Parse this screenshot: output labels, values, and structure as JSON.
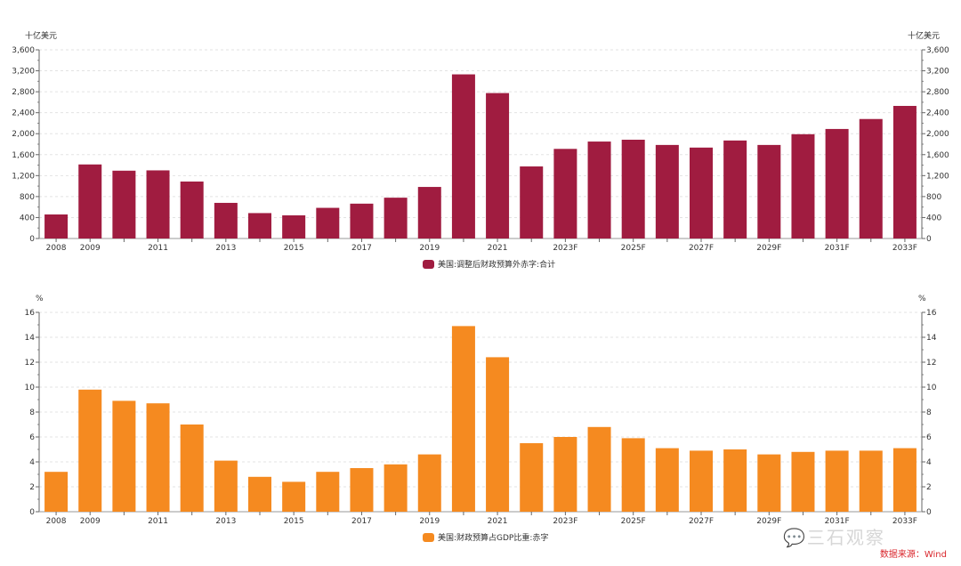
{
  "chart_data": [
    {
      "type": "bar",
      "unit_label": "十亿美元",
      "legend": "美国:调整后财政预算外赤字:合计",
      "legend_placement": "bottom",
      "color": "#a01c40",
      "ylim": [
        0,
        3600
      ],
      "yticks": [
        0,
        400,
        800,
        1200,
        1600,
        2000,
        2400,
        2800,
        3200,
        3600
      ],
      "ytick_labels": [
        "0",
        "400",
        "800",
        "1,200",
        "1,600",
        "2,000",
        "2,400",
        "2,800",
        "3,200",
        "3,600"
      ],
      "dual_axis": true,
      "grid": true,
      "categories": [
        "2008",
        "2009",
        "2010",
        "2011",
        "2012",
        "2013",
        "2014",
        "2015",
        "2016",
        "2017",
        "2018",
        "2019",
        "2020",
        "2021",
        "2022",
        "2023F",
        "2024F",
        "2025F",
        "2026F",
        "2027F",
        "2028F",
        "2029F",
        "2030F",
        "2031F",
        "2032F",
        "2033F"
      ],
      "xtick_labels": [
        "2008",
        "2009",
        "",
        "2011",
        "",
        "2013",
        "",
        "2015",
        "",
        "2017",
        "",
        "2019",
        "",
        "2021",
        "",
        "2023F",
        "",
        "2025F",
        "",
        "2027F",
        "",
        "2029F",
        "",
        "2031F",
        "",
        "2033F"
      ],
      "values": [
        459,
        1413,
        1294,
        1300,
        1087,
        680,
        485,
        442,
        585,
        665,
        779,
        984,
        3132,
        2775,
        1375,
        1710,
        1850,
        1885,
        1785,
        1735,
        1870,
        1785,
        1990,
        2090,
        2280,
        2530
      ]
    },
    {
      "type": "bar",
      "unit_label": "%",
      "legend": "美国:财政预算占GDP比重:赤字",
      "legend_placement": "bottom",
      "color": "#f58a20",
      "ylim": [
        0,
        16
      ],
      "yticks": [
        0,
        2,
        4,
        6,
        8,
        10,
        12,
        14,
        16
      ],
      "ytick_labels": [
        "0",
        "2",
        "4",
        "6",
        "8",
        "10",
        "12",
        "14",
        "16"
      ],
      "dual_axis": true,
      "grid": true,
      "categories": [
        "2008",
        "2009",
        "2010",
        "2011",
        "2012",
        "2013",
        "2014",
        "2015",
        "2016",
        "2017",
        "2018",
        "2019",
        "2020",
        "2021",
        "2022",
        "2023F",
        "2024F",
        "2025F",
        "2026F",
        "2027F",
        "2028F",
        "2029F",
        "2030F",
        "2031F",
        "2032F",
        "2033F"
      ],
      "xtick_labels": [
        "2008",
        "2009",
        "",
        "2011",
        "",
        "2013",
        "",
        "2015",
        "",
        "2017",
        "",
        "2019",
        "",
        "2021",
        "",
        "2023F",
        "",
        "2025F",
        "",
        "2027F",
        "",
        "2029F",
        "",
        "2031F",
        "",
        "2033F"
      ],
      "values": [
        3.2,
        9.8,
        8.9,
        8.7,
        7.0,
        4.1,
        2.8,
        2.4,
        3.2,
        3.5,
        3.8,
        4.6,
        14.9,
        12.4,
        5.5,
        6.0,
        6.8,
        5.9,
        5.1,
        4.9,
        5.0,
        4.6,
        4.8,
        4.9,
        4.9,
        5.1
      ]
    }
  ],
  "source": "数据来源：Wind",
  "watermark": "三石观察"
}
